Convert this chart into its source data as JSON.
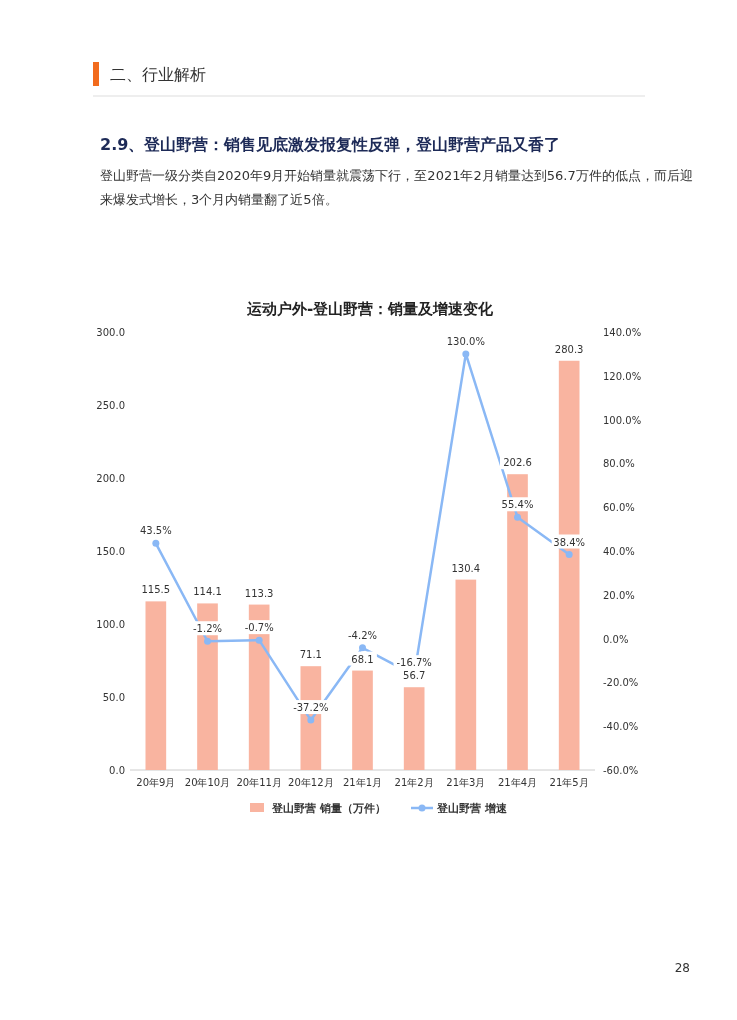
{
  "chart_data": {
    "type": "bar",
    "title": "运动户外-登山野营：销量及增速变化",
    "annotations": [
      "二、行业解析",
      "2.9、登山野营：销售见底激发报复性反弹，登山野营产品又香了",
      "登山野营一级分类自2020年9月开始销量就震荡下行，至2021年2月销量达到56.7万件的低点，而后迎来爆发式增长，3个月内销量翻了近5倍。",
      "28"
    ],
    "categories": [
      "20年9月",
      "20年10月",
      "20年11月",
      "20年12月",
      "21年1月",
      "21年2月",
      "21年3月",
      "21年4月",
      "21年5月"
    ],
    "series": [
      {
        "name": "登山野营 销量（万件）",
        "color": "#f9b4a0",
        "values": [
          115.5,
          114.1,
          113.3,
          71.1,
          68.1,
          56.7,
          130.4,
          202.6,
          280.3
        ],
        "value_labels": [
          "115.5",
          "114.1",
          "113.3",
          "71.1",
          "68.1",
          "56.7",
          "130.4",
          "202.6",
          "280.3"
        ]
      },
      {
        "name": "登山野营 增速",
        "type": "line",
        "axis": "y2",
        "color": "#8ab8f5",
        "marker": "circle",
        "values": [
          43.5,
          -1.2,
          -0.7,
          -37.2,
          -4.2,
          -16.7,
          130.0,
          55.4,
          38.4
        ],
        "value_labels": [
          "43.5%",
          "-1.2%",
          "-0.7%",
          "-37.2%",
          "-4.2%",
          "-16.7%",
          "130.0%",
          "55.4%",
          "38.4%"
        ]
      }
    ],
    "ylim": [
      0,
      300
    ],
    "yticks": [
      {
        "value": 0,
        "label": "0.0"
      },
      {
        "value": 50,
        "label": "50.0"
      },
      {
        "value": 100,
        "label": "100.0"
      },
      {
        "value": 150,
        "label": "150.0"
      },
      {
        "value": 200,
        "label": "200.0"
      },
      {
        "value": 250,
        "label": "250.0"
      },
      {
        "value": 300,
        "label": "300.0"
      }
    ],
    "y2lim": [
      -60,
      140
    ],
    "y2ticks": [
      {
        "value": -60,
        "label": "-60.0%"
      },
      {
        "value": -40,
        "label": "-40.0%"
      },
      {
        "value": -20,
        "label": "-20.0%"
      },
      {
        "value": 0,
        "label": "0.0%"
      },
      {
        "value": 20,
        "label": "20.0%"
      },
      {
        "value": 40,
        "label": "40.0%"
      },
      {
        "value": 60,
        "label": "60.0%"
      },
      {
        "value": 80,
        "label": "80.0%"
      },
      {
        "value": 100,
        "label": "100.0%"
      },
      {
        "value": 120,
        "label": "120.0%"
      },
      {
        "value": 140,
        "label": "140.0%"
      }
    ],
    "legend": "bottom",
    "grid": false
  }
}
